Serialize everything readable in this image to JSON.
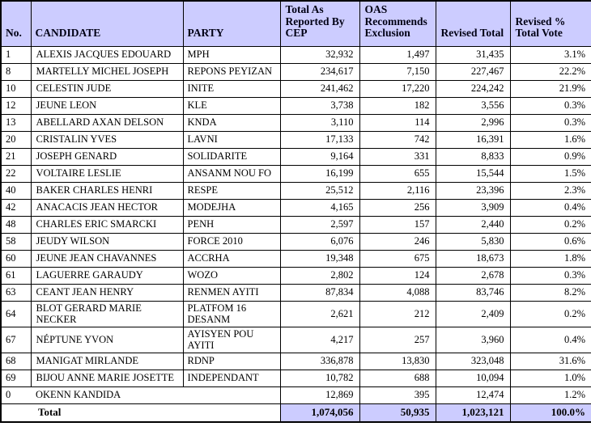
{
  "colors": {
    "header_background": "#ccccff",
    "total_row_background": "#ccccff",
    "border": "#000000",
    "text": "#000000",
    "page_background": "#ffffff"
  },
  "table": {
    "columns": [
      {
        "key": "no",
        "label": "No."
      },
      {
        "key": "candidate",
        "label": "CANDIDATE"
      },
      {
        "key": "party",
        "label": "PARTY"
      },
      {
        "key": "cep_total",
        "label": "Total As Reported By CEP"
      },
      {
        "key": "oas_exclusion",
        "label": "OAS Recommends Exclusion"
      },
      {
        "key": "revised_total",
        "label": "Revised Total"
      },
      {
        "key": "revised_pct",
        "label": "Revised % Total Vote"
      }
    ],
    "rows": [
      {
        "no": "1",
        "candidate": "ALEXIS JACQUES EDOUARD",
        "party": "MPH",
        "cep_total": "32,932",
        "oas_exclusion": "1,497",
        "revised_total": "31,435",
        "revised_pct": "3.1%"
      },
      {
        "no": "8",
        "candidate": "MARTELLY MICHEL JOSEPH",
        "party": "REPONS PEYIZAN",
        "cep_total": "234,617",
        "oas_exclusion": "7,150",
        "revised_total": "227,467",
        "revised_pct": "22.2%"
      },
      {
        "no": "10",
        "candidate": "CELESTIN JUDE",
        "party": "INITE",
        "cep_total": "241,462",
        "oas_exclusion": "17,220",
        "revised_total": "224,242",
        "revised_pct": "21.9%"
      },
      {
        "no": "12",
        "candidate": "JEUNE LEON",
        "party": "KLE",
        "cep_total": "3,738",
        "oas_exclusion": "182",
        "revised_total": "3,556",
        "revised_pct": "0.3%"
      },
      {
        "no": "13",
        "candidate": "ABELLARD AXAN DELSON",
        "party": "KNDA",
        "cep_total": "3,110",
        "oas_exclusion": "114",
        "revised_total": "2,996",
        "revised_pct": "0.3%"
      },
      {
        "no": "20",
        "candidate": "CRISTALIN YVES",
        "party": "LAVNI",
        "cep_total": "17,133",
        "oas_exclusion": "742",
        "revised_total": "16,391",
        "revised_pct": "1.6%"
      },
      {
        "no": "21",
        "candidate": "JOSEPH GENARD",
        "party": "SOLIDARITE",
        "cep_total": "9,164",
        "oas_exclusion": "331",
        "revised_total": "8,833",
        "revised_pct": "0.9%"
      },
      {
        "no": "22",
        "candidate": "VOLTAIRE LESLIE",
        "party": "ANSANM NOU FO",
        "cep_total": "16,199",
        "oas_exclusion": "655",
        "revised_total": "15,544",
        "revised_pct": "1.5%"
      },
      {
        "no": "40",
        "candidate": "BAKER CHARLES HENRI",
        "party": "RESPE",
        "cep_total": "25,512",
        "oas_exclusion": "2,116",
        "revised_total": "23,396",
        "revised_pct": "2.3%"
      },
      {
        "no": "42",
        "candidate": "ANACACIS JEAN HECTOR",
        "party": "MODEJHA",
        "cep_total": "4,165",
        "oas_exclusion": "256",
        "revised_total": "3,909",
        "revised_pct": "0.4%"
      },
      {
        "no": "48",
        "candidate": "CHARLES ERIC SMARCKI",
        "party": "PENH",
        "cep_total": "2,597",
        "oas_exclusion": "157",
        "revised_total": "2,440",
        "revised_pct": "0.2%"
      },
      {
        "no": "58",
        "candidate": "JEUDY WILSON",
        "party": "FORCE 2010",
        "cep_total": "6,076",
        "oas_exclusion": "246",
        "revised_total": "5,830",
        "revised_pct": "0.6%"
      },
      {
        "no": "60",
        "candidate": "JEUNE JEAN CHAVANNES",
        "party": "ACCRHA",
        "cep_total": "19,348",
        "oas_exclusion": "675",
        "revised_total": "18,673",
        "revised_pct": "1.8%"
      },
      {
        "no": "61",
        "candidate": "LAGUERRE GARAUDY",
        "party": "WOZO",
        "cep_total": "2,802",
        "oas_exclusion": "124",
        "revised_total": "2,678",
        "revised_pct": "0.3%"
      },
      {
        "no": "63",
        "candidate": "CEANT JEAN HENRY",
        "party": "RENMEN AYITI",
        "cep_total": "87,834",
        "oas_exclusion": "4,088",
        "revised_total": "83,746",
        "revised_pct": "8.2%"
      },
      {
        "no": "64",
        "candidate": "BLOT GERARD MARIE NECKER",
        "party": "PLATFOM 16 DESANM",
        "cep_total": "2,621",
        "oas_exclusion": "212",
        "revised_total": "2,409",
        "revised_pct": "0.2%",
        "tall": true
      },
      {
        "no": "67",
        "candidate": "NÉPTUNE YVON",
        "party": "AYISYEN POU AYITI",
        "cep_total": "4,217",
        "oas_exclusion": "257",
        "revised_total": "3,960",
        "revised_pct": "0.4%",
        "tall": true
      },
      {
        "no": "68",
        "candidate": "MANIGAT MIRLANDE",
        "party": "RDNP",
        "cep_total": "336,878",
        "oas_exclusion": "13,830",
        "revised_total": "323,048",
        "revised_pct": "31.6%"
      },
      {
        "no": "69",
        "candidate": "BIJOU ANNE MARIE JOSETTE",
        "party": "INDEPENDANT",
        "cep_total": "10,782",
        "oas_exclusion": "688",
        "revised_total": "10,094",
        "revised_pct": "1.0%"
      },
      {
        "no": "0",
        "candidate": "OKENN KANDIDA",
        "party": "",
        "cep_total": "12,869",
        "oas_exclusion": "395",
        "revised_total": "12,474",
        "revised_pct": "1.2%",
        "merged": true
      }
    ],
    "total_row": {
      "label": "Total",
      "cep_total": "1,074,056",
      "oas_exclusion": "50,935",
      "revised_total": "1,023,121",
      "revised_pct": "100.0%"
    }
  }
}
